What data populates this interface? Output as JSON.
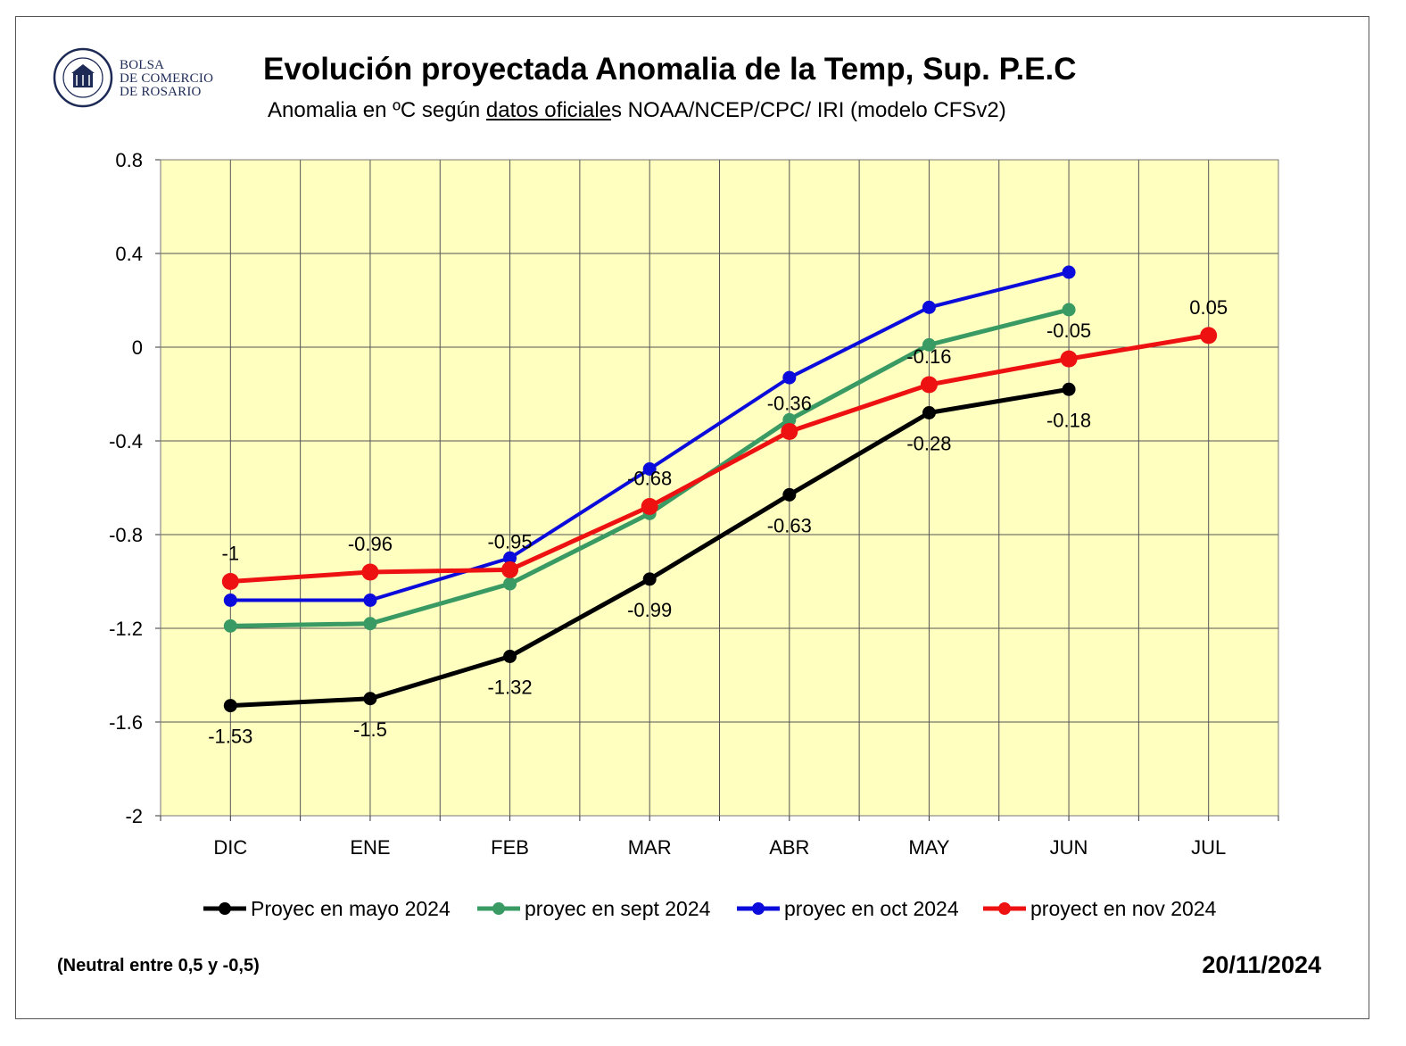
{
  "header": {
    "logo_lines": [
      "BOLSA",
      "DE COMERCIO",
      "DE ROSARIO"
    ],
    "title": "Evolución proyectada Anomalia de la Temp, Sup.  P.E.C",
    "subtitle_pre": "Anomalia en ºC según ",
    "subtitle_underlined": "datos oficiale",
    "subtitle_post": "s NOAA/NCEP/CPC/ IRI (modelo CFSv2)"
  },
  "footer": {
    "note": "(Neutral entre 0,5 y -0,5)",
    "date": "20/11/2024"
  },
  "colors": {
    "plot_background": "#ffffc0",
    "grid": "#555555"
  },
  "chart_data": {
    "type": "line",
    "categories": [
      "DIC",
      "ENE",
      "FEB",
      "MAR",
      "ABR",
      "MAY",
      "JUN",
      "JUL"
    ],
    "ylim": [
      -2,
      0.8
    ],
    "yticks": [
      0.8,
      0.4,
      0,
      -0.4,
      -0.8,
      -1.2,
      -1.6,
      -2
    ],
    "ytick_labels": [
      "0.8",
      "0.4",
      "0",
      "-0.4",
      "-0.8",
      "-1.2",
      "-1.6",
      "-2"
    ],
    "grid": true,
    "legend_position": "bottom",
    "series": [
      {
        "name": "Proyec en mayo 2024",
        "color": "#000000",
        "values": [
          -1.53,
          -1.5,
          -1.32,
          -0.99,
          -0.63,
          -0.28,
          -0.18,
          null
        ],
        "labels": [
          "-1.53",
          "-1.5",
          "-1.32",
          "-0.99",
          "-0.63",
          "-0.28",
          "-0.18",
          null
        ],
        "label_position": "below"
      },
      {
        "name": "proyec en sept 2024",
        "color": "#3a9a64",
        "values": [
          -1.19,
          -1.18,
          -1.01,
          -0.71,
          -0.31,
          0.01,
          0.16,
          null
        ]
      },
      {
        "name": "proyec en oct 2024",
        "color": "#0b0bdc",
        "values": [
          -1.08,
          -1.08,
          -0.9,
          -0.52,
          -0.13,
          0.17,
          0.32,
          null
        ]
      },
      {
        "name": "proyect en nov 2024",
        "color": "#ee1111",
        "values": [
          -1,
          -0.96,
          -0.95,
          -0.68,
          -0.36,
          -0.16,
          -0.05,
          0.05
        ],
        "labels": [
          "-1",
          "-0.96",
          "-0.95",
          "-0.68",
          "-0.36",
          "-0.16",
          "-0.05",
          "0.05"
        ],
        "label_position": "above"
      }
    ]
  }
}
